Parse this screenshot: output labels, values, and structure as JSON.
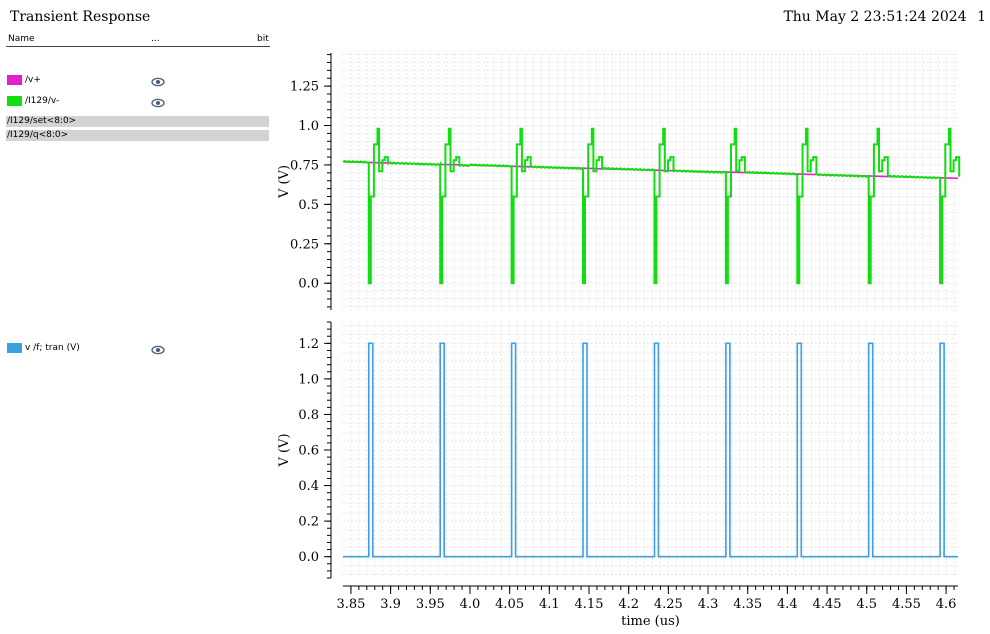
{
  "header": {
    "title": "Transient Response",
    "datetime": "Thu May 2 23:51:24 2024",
    "page_number": "1"
  },
  "signal_list": {
    "columns": [
      "Name",
      "...",
      "bit"
    ],
    "panel1_signals": [
      {
        "label": "/v+",
        "color": "#e020c8",
        "icon": "eye-icon"
      },
      {
        "label": "/I129/v-",
        "color": "#11dd11",
        "icon": "eye-icon"
      }
    ],
    "buses": [
      "/I129/set<8:0>",
      "/I129/q<8:0>"
    ],
    "panel2_signals": [
      {
        "label": "v /f; tran (V)",
        "color": "#3d9ee0",
        "icon": "eye-icon"
      }
    ]
  },
  "chart_data": [
    {
      "type": "line",
      "ylabel": "V (V)",
      "xlabel": "",
      "xlim": [
        3.84,
        4.615
      ],
      "ylim": [
        -0.17,
        1.46
      ],
      "y_ticks": [
        "0.0",
        "0.25",
        "0.5",
        "0.75",
        "1.0",
        "1.25"
      ],
      "grid": true,
      "series": [
        {
          "name": "/v+",
          "color": "#e020c8",
          "x": [
            3.84,
            4.615
          ],
          "y": [
            0.77,
            0.665
          ]
        },
        {
          "name": "/I129/v-",
          "color": "#11dd11",
          "pulse_starts": [
            3.8725,
            3.9625,
            4.0525,
            4.1425,
            4.2325,
            4.3225,
            4.4125,
            4.5025,
            4.5925
          ],
          "baseline": {
            "x": [
              3.84,
              4.615
            ],
            "y": [
              0.77,
              0.665
            ]
          }
        }
      ]
    },
    {
      "type": "line",
      "ylabel": "V (V)",
      "xlabel": "time (us)",
      "xlim": [
        3.84,
        4.615
      ],
      "ylim": [
        -0.12,
        1.32
      ],
      "y_ticks": [
        "0.0",
        "0.2",
        "0.4",
        "0.6",
        "0.8",
        "1.0",
        "1.2"
      ],
      "x_ticks": [
        "3.85",
        "3.9",
        "3.95",
        "4.0",
        "4.05",
        "4.1",
        "4.15",
        "4.2",
        "4.25",
        "4.3",
        "4.35",
        "4.4",
        "4.45",
        "4.5",
        "4.55",
        "4.6"
      ],
      "grid": true,
      "series": [
        {
          "name": "v /f; tran (V)",
          "color": "#3d9ee0",
          "pulse_starts": [
            3.8725,
            3.9625,
            4.0525,
            4.1425,
            4.2325,
            4.3225,
            4.4125,
            4.5025,
            4.5925
          ],
          "pulse_width": 0.005,
          "low": 0.0,
          "high": 1.2
        }
      ]
    }
  ]
}
